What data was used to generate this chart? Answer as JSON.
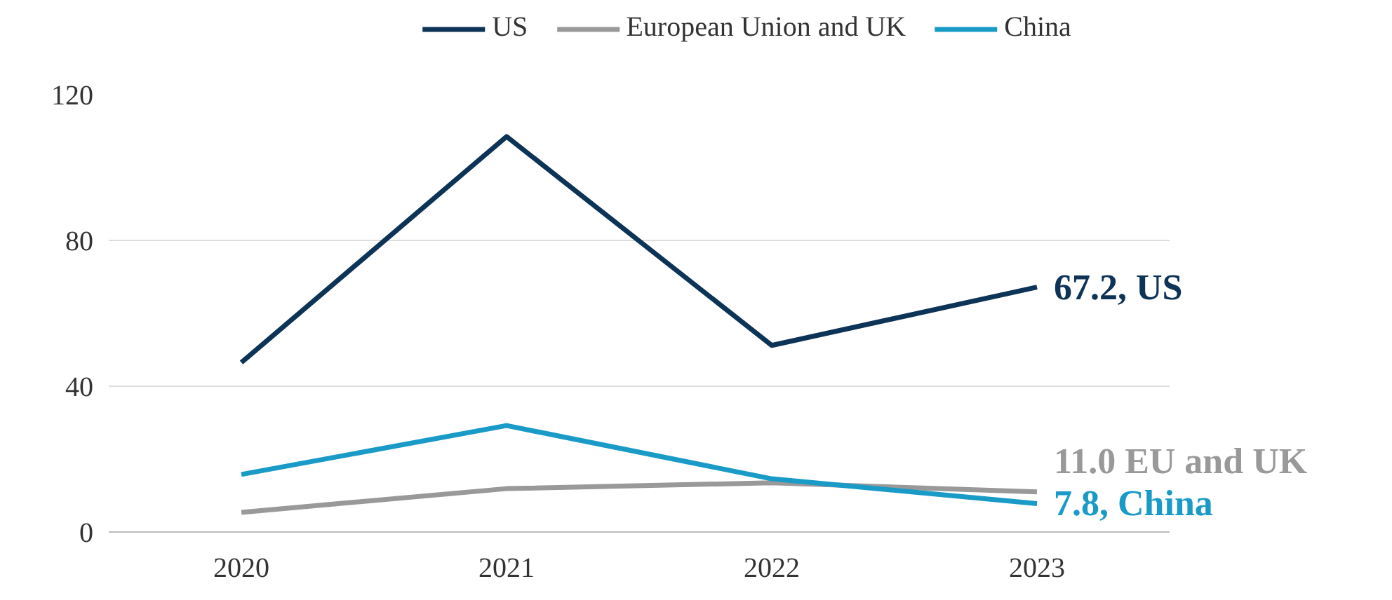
{
  "chart_data": {
    "type": "line",
    "categories": [
      "2020",
      "2021",
      "2022",
      "2023"
    ],
    "series": [
      {
        "name": "US",
        "color": "#0d3356",
        "values": [
          46.5,
          108.5,
          51.2,
          67.2
        ]
      },
      {
        "name": "European Union and UK",
        "color": "#999999",
        "values": [
          5.4,
          11.9,
          13.5,
          11.0
        ]
      },
      {
        "name": "China",
        "color": "#1a9bc7",
        "values": [
          15.8,
          29.2,
          14.6,
          7.8
        ]
      }
    ],
    "ylim": [
      0,
      120
    ],
    "yticks": [
      0,
      40,
      80,
      120
    ],
    "grid": "y",
    "legend": "top",
    "marker": "none",
    "line_style": "solid",
    "annotations": [
      {
        "text": "67.2, US",
        "x": "2023",
        "y": 67.2
      },
      {
        "text": "11.0 EU and UK",
        "x": "2023",
        "y": 11.0
      },
      {
        "text": "7.8, China",
        "x": "2023",
        "y": 7.8
      }
    ]
  }
}
